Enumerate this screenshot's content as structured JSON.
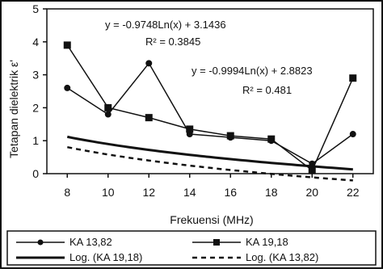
{
  "colors": {
    "ink": "#111111",
    "paper": "#ffffff"
  },
  "chart_data": {
    "type": "line",
    "x": [
      8,
      10,
      12,
      14,
      16,
      18,
      20,
      22
    ],
    "xlabel": "Frekuensi (MHz)",
    "ylabel": "Tetapan dielektrik ε'",
    "xlim": [
      7,
      23
    ],
    "ylim": [
      0,
      5
    ],
    "y_ticks": [
      0,
      1,
      2,
      3,
      4,
      5
    ],
    "grid": false,
    "legend_position": "bottom",
    "series": [
      {
        "name": "KA 13,82",
        "marker": "circle",
        "values": [
          2.6,
          1.8,
          3.35,
          1.2,
          1.1,
          1.0,
          0.3,
          1.2
        ]
      },
      {
        "name": "KA 19,18",
        "marker": "square",
        "values": [
          3.9,
          2.0,
          1.7,
          1.35,
          1.15,
          1.05,
          0.1,
          2.9
        ]
      },
      {
        "name": "Log. (KA 19,18)",
        "style": "solid-thick",
        "fit": {
          "kind": "log",
          "a": -0.9748,
          "b": 3.1436
        }
      },
      {
        "name": "Log. (KA 13,82)",
        "style": "dashed",
        "fit": {
          "kind": "log",
          "a": -0.9994,
          "b": 2.8823
        }
      }
    ],
    "annotations": [
      {
        "id": "eq1",
        "text": "y = -0.9748Ln(x) + 3.1436"
      },
      {
        "id": "r2-1",
        "text": "R² = 0.3845"
      },
      {
        "id": "eq2",
        "text": "y = -0.9994Ln(x) + 2.8823"
      },
      {
        "id": "r2-2",
        "text": "R² = 0.481"
      }
    ]
  }
}
